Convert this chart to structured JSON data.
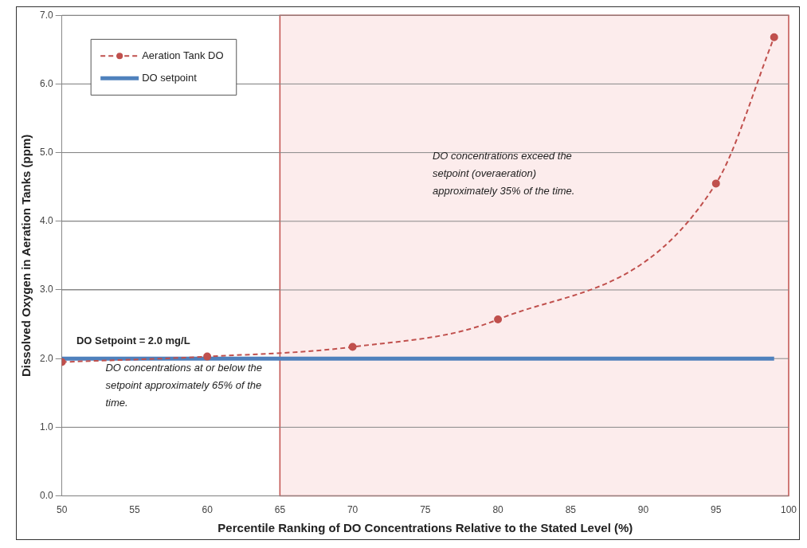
{
  "chart_data": {
    "type": "line",
    "xlabel": "Percentile Ranking of DO Concentrations Relative to the Stated Level (%)",
    "ylabel": "Dissolved Oxygen in Aeration Tanks (ppm)",
    "xlim": [
      50,
      100
    ],
    "xticks": [
      50,
      55,
      60,
      65,
      70,
      75,
      80,
      85,
      90,
      95,
      100
    ],
    "ylim": [
      0,
      7
    ],
    "yticks": [
      {
        "value": 0,
        "label": "0.0"
      },
      {
        "value": 1,
        "label": "1.0"
      },
      {
        "value": 2,
        "label": "2.0"
      },
      {
        "value": 3,
        "label": "3.0"
      },
      {
        "value": 4,
        "label": "4.0"
      },
      {
        "value": 5,
        "label": "5.0"
      },
      {
        "value": 6,
        "label": "6.0"
      },
      {
        "value": 7,
        "label": "7.0"
      }
    ],
    "grid": "y",
    "legend": "top left",
    "series": [
      {
        "name": "Aeration Tank DO",
        "color": "#c0504d",
        "x": [
          50,
          60,
          70,
          80,
          95,
          99
        ],
        "values": [
          1.95,
          2.03,
          2.17,
          2.57,
          4.55,
          6.68
        ],
        "marker": "circle",
        "line_style": "dashed"
      },
      {
        "name": "DO setpoint",
        "color": "#4f81bd",
        "x": [
          50,
          99
        ],
        "values": [
          2.0,
          2.0
        ],
        "marker": "none",
        "line_style": "solid"
      }
    ],
    "bands": [
      {
        "axis": "x",
        "from": 65,
        "to": 100,
        "color": "#fcecec"
      }
    ],
    "annotations": [
      {
        "text": "DO Setpoint = 2.0 mg/L",
        "x": 50,
        "y": 2.0
      },
      "DO concentrations at or below the setpoint approximately 65% of the time.",
      "DO concentrations exceed the setpoint (overaeration) approximately 35% of the time."
    ]
  }
}
